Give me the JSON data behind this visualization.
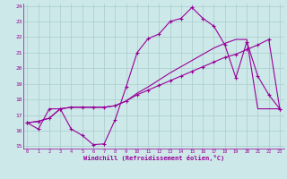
{
  "xlabel": "Windchill (Refroidissement éolien,°C)",
  "background_color": "#cce8e8",
  "grid_color": "#aacccc",
  "line_color": "#990099",
  "xmin": 0,
  "xmax": 23,
  "ymin": 15,
  "ymax": 24,
  "yticks": [
    15,
    16,
    17,
    18,
    19,
    20,
    21,
    22,
    23,
    24
  ],
  "xticks": [
    0,
    1,
    2,
    3,
    4,
    5,
    6,
    7,
    8,
    9,
    10,
    11,
    12,
    13,
    14,
    15,
    16,
    17,
    18,
    19,
    20,
    21,
    22,
    23
  ],
  "temp_curve": [
    16.5,
    16.1,
    17.4,
    17.4,
    16.1,
    15.7,
    15.1,
    15.15,
    16.7,
    18.8,
    21.0,
    21.9,
    22.2,
    23.0,
    23.2,
    23.9,
    23.2,
    22.7,
    21.5,
    19.4,
    21.7,
    19.5,
    18.3,
    17.4
  ],
  "line2": [
    16.5,
    16.6,
    16.8,
    17.4,
    17.5,
    17.5,
    17.5,
    17.5,
    17.6,
    17.9,
    18.3,
    18.6,
    18.9,
    19.2,
    19.5,
    19.8,
    20.1,
    20.4,
    20.7,
    20.9,
    21.2,
    21.5,
    21.85,
    17.4
  ],
  "line3": [
    16.5,
    16.6,
    16.8,
    17.4,
    17.5,
    17.5,
    17.5,
    17.5,
    17.6,
    17.9,
    18.4,
    18.8,
    19.25,
    19.7,
    20.1,
    20.5,
    20.9,
    21.3,
    21.6,
    21.85,
    21.85,
    17.4,
    17.4,
    17.4
  ]
}
